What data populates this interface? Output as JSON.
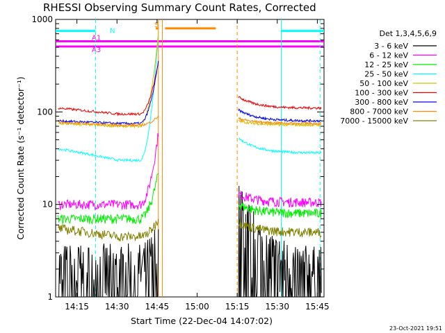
{
  "chart_data": {
    "type": "line",
    "title": "RHESSI Observing Summary Count Rates, Corrected",
    "xlabel": "Start Time (22-Dec-04 14:07:02)",
    "ylabel": "Corrected Count Rate (s⁻¹ detector⁻¹)",
    "ylog": true,
    "xlim": [
      "14:07:02",
      "15:47:30"
    ],
    "ylim": [
      1,
      1000
    ],
    "x_ticks": [
      "14:15",
      "14:30",
      "14:45",
      "15:00",
      "15:15",
      "15:30",
      "15:45"
    ],
    "y_ticks": [
      "1",
      "10",
      "100",
      "1000"
    ],
    "legend_title": "Det 1,3,4,5,6,9",
    "legend_position": "right",
    "series": [
      {
        "name": "3 - 6 keV",
        "color": "#000000",
        "pre": [
          2.0
        ],
        "post_start": 9.0,
        "post_end": 1.8
      },
      {
        "name": "6 - 12 keV",
        "color": "#ff00ff",
        "pre": [
          10.0
        ],
        "post_start": 13.0,
        "post_end": 10.5
      },
      {
        "name": "12 - 25 keV",
        "color": "#00ee00",
        "pre": [
          7.0
        ],
        "post_start": 10.0,
        "post_end": 8.0
      },
      {
        "name": "25 - 50 keV",
        "color": "#00ffff",
        "pre": [
          40.0,
          30.0
        ],
        "post_start": 52.0,
        "post_end": 36.0
      },
      {
        "name": "50 - 100 keV",
        "color": "#d4c000",
        "pre": [
          75.0,
          70.0
        ],
        "post_start": 80.0,
        "post_end": 72.0
      },
      {
        "name": "100 - 300 keV",
        "color": "#ee0000",
        "pre": [
          110.0,
          95.0
        ],
        "post_start": 145.0,
        "post_end": 110.0
      },
      {
        "name": "300 - 800 keV",
        "color": "#0000ee",
        "pre": [
          80.0,
          75.0
        ],
        "post_start": 105.0,
        "post_end": 80.0
      },
      {
        "name": "800 - 7000 keV",
        "color": "#ff8800",
        "pre": [
          77.0,
          72.0
        ],
        "post_start": 85.0,
        "post_end": 75.0
      },
      {
        "name": "7000 - 15000 keV",
        "color": "#808000",
        "pre": [
          5.5,
          4.5
        ],
        "post_start": 6.5,
        "post_end": 5.0
      }
    ],
    "annotations": {
      "bars": [
        {
          "label": "N",
          "color": "#00ffff",
          "start": "14:07:02",
          "end": "14:22:00",
          "level": 750
        },
        {
          "label": "",
          "color": "#00ffff",
          "start": "15:31:30",
          "end": "15:47:30",
          "level": 750
        },
        {
          "label": "A1",
          "color": "#ff00ff",
          "start": "14:07:02",
          "end": "15:47:30",
          "level": 580
        },
        {
          "label": "A3",
          "color": "#ff00ff",
          "start": "14:07:02",
          "end": "15:47:30",
          "level": 510
        },
        {
          "label": "S",
          "color": "#ff8800",
          "start": "14:44:30",
          "end": "14:45:30",
          "level": 800
        },
        {
          "label": "",
          "color": "#ff8800",
          "start": "14:48:00",
          "end": "15:07:00",
          "level": 800
        }
      ],
      "vlines": [
        {
          "time": "14:22:00",
          "color": "#00ffff",
          "style": "dashed"
        },
        {
          "time": "15:31:30",
          "color": "#00ffff",
          "style": "solid"
        },
        {
          "time": "15:46:00",
          "color": "#00ffff",
          "style": "dashed"
        },
        {
          "time": "14:45:30",
          "color": "#ff8800",
          "style": "solid"
        },
        {
          "time": "14:47:00",
          "color": "#ff8800",
          "style": "solid"
        },
        {
          "time": "15:15:00",
          "color": "#ff8800",
          "style": "dashed"
        }
      ]
    },
    "footer": "23-Oct-2021 19:51"
  }
}
